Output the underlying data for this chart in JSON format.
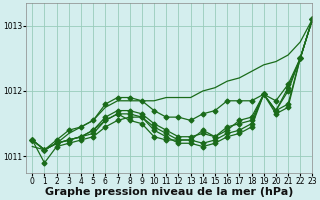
{
  "title": "Graphe pression niveau de la mer (hPa)",
  "background_color": "#d4eeee",
  "grid_color": "#99ccbb",
  "line_color": "#1a6b1a",
  "xlim": [
    -0.5,
    23
  ],
  "ylim": [
    1010.75,
    1013.35
  ],
  "yticks": [
    1011,
    1012,
    1013
  ],
  "xticks": [
    0,
    1,
    2,
    3,
    4,
    5,
    6,
    7,
    8,
    9,
    10,
    11,
    12,
    13,
    14,
    15,
    16,
    17,
    18,
    19,
    20,
    21,
    22,
    23
  ],
  "series": [
    [
      1011.25,
      1010.9,
      1011.15,
      1011.2,
      1011.25,
      1011.3,
      1011.45,
      1011.55,
      1011.6,
      1011.6,
      1011.45,
      1011.35,
      1011.25,
      1011.25,
      1011.2,
      1011.25,
      1011.35,
      1011.4,
      1011.5,
      1011.95,
      1011.7,
      1011.8,
      1012.5,
      1013.1
    ],
    [
      1011.25,
      1011.1,
      1011.2,
      1011.25,
      1011.3,
      1011.4,
      1011.55,
      1011.65,
      1011.65,
      1011.6,
      1011.4,
      1011.3,
      1011.2,
      1011.2,
      1011.15,
      1011.2,
      1011.3,
      1011.35,
      1011.45,
      1011.95,
      1011.65,
      1011.75,
      1012.5,
      1013.1
    ],
    [
      1011.25,
      1011.1,
      1011.2,
      1011.25,
      1011.3,
      1011.4,
      1011.6,
      1011.7,
      1011.7,
      1011.65,
      1011.5,
      1011.4,
      1011.3,
      1011.3,
      1011.35,
      1011.3,
      1011.45,
      1011.5,
      1011.55,
      1011.95,
      1011.7,
      1012.0,
      1012.5,
      1013.1
    ],
    [
      1011.25,
      1011.1,
      1011.2,
      1011.25,
      1011.3,
      1011.35,
      1011.55,
      1011.65,
      1011.55,
      1011.5,
      1011.3,
      1011.25,
      1011.25,
      1011.25,
      1011.4,
      1011.3,
      1011.4,
      1011.55,
      1011.6,
      1011.95,
      1011.7,
      1012.05,
      1012.5,
      1013.1
    ]
  ],
  "series_top": [
    1011.25,
    1011.1,
    1011.25,
    1011.4,
    1011.45,
    1011.55,
    1011.8,
    1011.9,
    1011.9,
    1011.85,
    1011.7,
    1011.6,
    1011.6,
    1011.55,
    1011.65,
    1011.7,
    1011.85,
    1011.85,
    1011.85,
    1011.95,
    1011.85,
    1012.1,
    1012.5,
    1013.1
  ],
  "series_diagonal": [
    1011.15,
    1011.1,
    1011.2,
    1011.35,
    1011.45,
    1011.55,
    1011.75,
    1011.85,
    1011.85,
    1011.85,
    1011.85,
    1011.9,
    1011.9,
    1011.9,
    1012.0,
    1012.05,
    1012.15,
    1012.2,
    1012.3,
    1012.4,
    1012.45,
    1012.55,
    1012.75,
    1013.1
  ],
  "marker": "D",
  "marker_size": 2.5,
  "linewidth": 0.9,
  "title_fontsize": 8,
  "tick_fontsize": 5.5
}
